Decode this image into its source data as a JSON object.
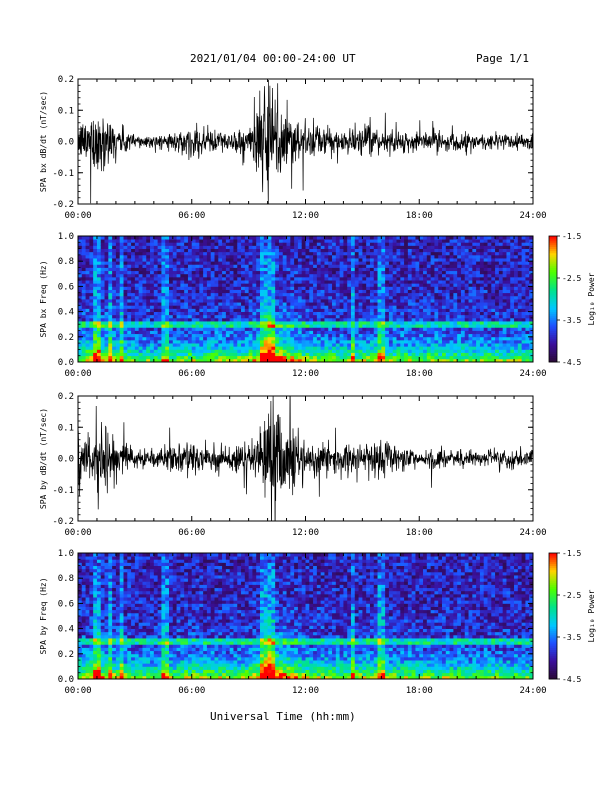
{
  "header": {
    "title": "2021/01/04  00:00-24:00 UT",
    "page": "Page 1/1"
  },
  "footer": {
    "xlabel": "Universal Time (hh:mm)"
  },
  "colors": {
    "trace": "#000000",
    "colormap": [
      "#2a0a35",
      "#3b0f9a",
      "#1f4fff",
      "#00c8ff",
      "#00e38a",
      "#4cff00",
      "#ffd400",
      "#ff0000"
    ]
  },
  "chart_data": [
    {
      "type": "line",
      "title": "",
      "ylabel": "SPA bx dB/dt (nT/sec)",
      "xlabel": "",
      "xlim": [
        0,
        24
      ],
      "ylim": [
        -0.2,
        0.2
      ],
      "x_ticks": [
        "00:00",
        "06:00",
        "12:00",
        "18:00",
        "24:00"
      ],
      "y_ticks": [
        "-0.2",
        "-0.1",
        "0.0",
        "0.1",
        "0.2"
      ],
      "envelope": {
        "hours": [
          0,
          0.5,
          1,
          1.5,
          2,
          3,
          4,
          5,
          6,
          7,
          8,
          9,
          9.5,
          10,
          10.5,
          11,
          12,
          13,
          14,
          15,
          16,
          17,
          18,
          19,
          20,
          21,
          22,
          23,
          24
        ],
        "amplitude": [
          0.05,
          0.09,
          0.12,
          0.1,
          0.06,
          0.03,
          0.02,
          0.03,
          0.05,
          0.05,
          0.03,
          0.06,
          0.12,
          0.2,
          0.2,
          0.14,
          0.06,
          0.05,
          0.04,
          0.05,
          0.04,
          0.04,
          0.03,
          0.04,
          0.03,
          0.03,
          0.03,
          0.03,
          0.03
        ]
      }
    },
    {
      "type": "heatmap",
      "title": "",
      "ylabel": "SPA bx Freq (Hz)",
      "xlabel": "",
      "xlim": [
        0,
        24
      ],
      "ylim": [
        0,
        1.0
      ],
      "x_ticks": [
        "00:00",
        "06:00",
        "12:00",
        "18:00",
        "24:00"
      ],
      "y_ticks": [
        "0.0",
        "0.2",
        "0.4",
        "0.6",
        "0.8",
        "1.0"
      ],
      "colorbar": {
        "label": "Log₁₀ Power",
        "range": [
          -4.5,
          -1.5
        ],
        "ticks": [
          "-1.5",
          "-2.5",
          "-3.5",
          "-4.5"
        ]
      },
      "line_hz": 0.3
    },
    {
      "type": "line",
      "title": "",
      "ylabel": "SPA by dB/dt (nT/sec)",
      "xlabel": "",
      "xlim": [
        0,
        24
      ],
      "ylim": [
        -0.2,
        0.2
      ],
      "x_ticks": [
        "00:00",
        "06:00",
        "12:00",
        "18:00",
        "24:00"
      ],
      "y_ticks": [
        "-0.2",
        "-0.1",
        "0.0",
        "0.1",
        "0.2"
      ],
      "envelope": {
        "hours": [
          0,
          0.5,
          1,
          1.5,
          2,
          3,
          4,
          5,
          6,
          7,
          8,
          9,
          9.5,
          10,
          10.5,
          11,
          12,
          13,
          14,
          15,
          16,
          17,
          18,
          19,
          20,
          21,
          22,
          23,
          24
        ],
        "amplitude": [
          0.06,
          0.09,
          0.12,
          0.1,
          0.07,
          0.04,
          0.03,
          0.04,
          0.06,
          0.06,
          0.04,
          0.06,
          0.12,
          0.2,
          0.2,
          0.15,
          0.07,
          0.05,
          0.05,
          0.05,
          0.07,
          0.04,
          0.03,
          0.04,
          0.03,
          0.03,
          0.03,
          0.03,
          0.03
        ]
      }
    },
    {
      "type": "heatmap",
      "title": "",
      "ylabel": "SPA by Freq (Hz)",
      "xlabel": "",
      "xlim": [
        0,
        24
      ],
      "ylim": [
        0,
        1.0
      ],
      "x_ticks": [
        "00:00",
        "06:00",
        "12:00",
        "18:00",
        "24:00"
      ],
      "y_ticks": [
        "0.0",
        "0.2",
        "0.4",
        "0.6",
        "0.8",
        "1.0"
      ],
      "colorbar": {
        "label": "Log₁₀ Power",
        "range": [
          -4.5,
          -1.5
        ],
        "ticks": [
          "-1.5",
          "-2.5",
          "-3.5",
          "-4.5"
        ]
      },
      "line_hz": 0.3
    }
  ]
}
